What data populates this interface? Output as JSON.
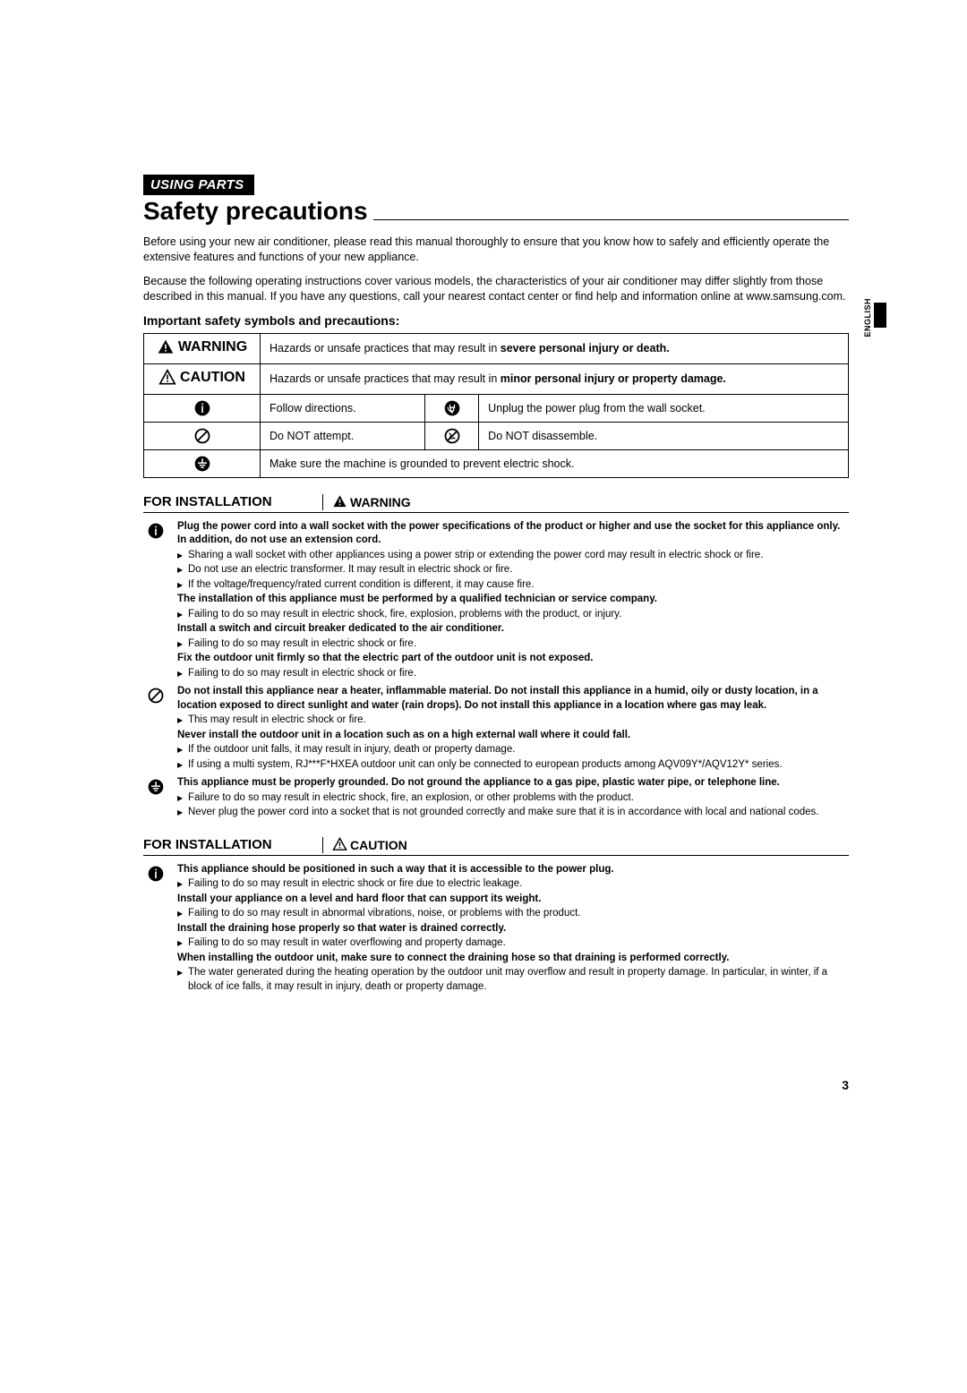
{
  "section_tag": "USING PARTS",
  "page_title": "Safety precautions",
  "side_lang": "ENGLISH",
  "page_number": "3",
  "intro": {
    "p1": "Before using your new air conditioner, please read this manual thoroughly to ensure that you know how to safely and efficiently operate the extensive features and functions of your new appliance.",
    "p2": "Because the following operating instructions cover various models, the characteristics of your air conditioner may differ slightly from those described in this manual. If you have any questions, call your nearest contact center or find help and information online at www.samsung.com."
  },
  "symbols_heading": "Important safety symbols and precautions:",
  "labels": {
    "warning": "WARNING",
    "caution": "CAUTION"
  },
  "symbol_table": {
    "warning_desc_pre": "Hazards or unsafe practices that may result in ",
    "warning_desc_bold": "severe personal injury or death.",
    "caution_desc_pre": "Hazards or unsafe practices that may result in ",
    "caution_desc_bold": "minor personal injury or property damage.",
    "follow": "Follow directions.",
    "unplug": "Unplug the power plug from the wall socket.",
    "noattempt": "Do NOT attempt.",
    "nodis": "Do NOT disassemble.",
    "ground": "Make sure the machine is grounded to prevent electric shock."
  },
  "sections": [
    {
      "title": "FOR INSTALLATION",
      "level": "WARNING",
      "blocks": [
        {
          "icon": "info",
          "items": [
            {
              "bold": "Plug the power cord into a wall socket with the power specifications of the product or higher and use the socket for this appliance only. In addition, do not use an extension cord."
            },
            {
              "bullet": "Sharing a wall socket with other appliances using a power strip or extending the power cord may result in electric shock or fire."
            },
            {
              "bullet": "Do not use an electric transformer. It may result in electric shock or fire."
            },
            {
              "bullet": "If the voltage/frequency/rated current condition is different, it may cause fire."
            },
            {
              "bold": "The installation of this appliance must be performed by a qualified technician or service company."
            },
            {
              "bullet": "Failing to do so may result in electric shock, fire, explosion, problems with the product, or injury."
            },
            {
              "bold": "Install a switch and circuit breaker dedicated to the air conditioner."
            },
            {
              "bullet": "Failing to do so may result in electric shock or fire."
            },
            {
              "bold": "Fix the outdoor unit firmly so that the electric part of the outdoor unit is not exposed."
            },
            {
              "bullet": "Failing to do so may result in electric shock or fire."
            }
          ]
        },
        {
          "icon": "prohibit",
          "items": [
            {
              "bold": "Do not install this appliance near a heater, inflammable material. Do not install this appliance in a humid, oily or dusty location, in a location exposed to direct sunlight and water (rain drops). Do not install this appliance in a location where gas may leak."
            },
            {
              "bullet": "This may result in electric shock or fire."
            },
            {
              "bold": "Never install the outdoor unit in a location such as on a high external wall where it could fall."
            },
            {
              "bullet": "If the outdoor unit falls, it may result in injury, death or property damage."
            },
            {
              "bullet": "If using a multi system, RJ***F*HXEA outdoor unit can only be connected to european products among AQV09Y*/AQV12Y* series."
            }
          ]
        },
        {
          "icon": "ground",
          "items": [
            {
              "bold": "This appliance must be properly grounded. Do not ground the appliance to a gas pipe, plastic water pipe, or telephone line."
            },
            {
              "bullet": "Failure to do so may result in electric shock, fire, an explosion, or other problems with the product."
            },
            {
              "bullet": "Never plug the power cord into a socket that is not grounded correctly and make sure that it is in accordance with local and national codes."
            }
          ]
        }
      ]
    },
    {
      "title": "FOR INSTALLATION",
      "level": "CAUTION",
      "blocks": [
        {
          "icon": "info",
          "items": [
            {
              "bold": "This appliance should be positioned in such a way that it is accessible to the power plug."
            },
            {
              "bullet": "Failing to do so may result in electric shock or fire due to electric leakage."
            },
            {
              "bold": "Install your appliance on a level and hard floor that can support its weight."
            },
            {
              "bullet": "Failing to do so may result in abnormal vibrations, noise, or problems with the product."
            },
            {
              "bold": "Install the draining hose properly so that water is drained correctly."
            },
            {
              "bullet": "Failing to do so may result in water overflowing and property damage."
            },
            {
              "bold": "When installing the outdoor unit, make sure to connect the draining hose so that draining is performed correctly."
            },
            {
              "bullet": "The water generated during the heating operation by the outdoor unit may overflow and result in property damage. In particular, in winter, if a block of ice falls, it may result in injury, death or property damage."
            }
          ]
        }
      ]
    }
  ]
}
